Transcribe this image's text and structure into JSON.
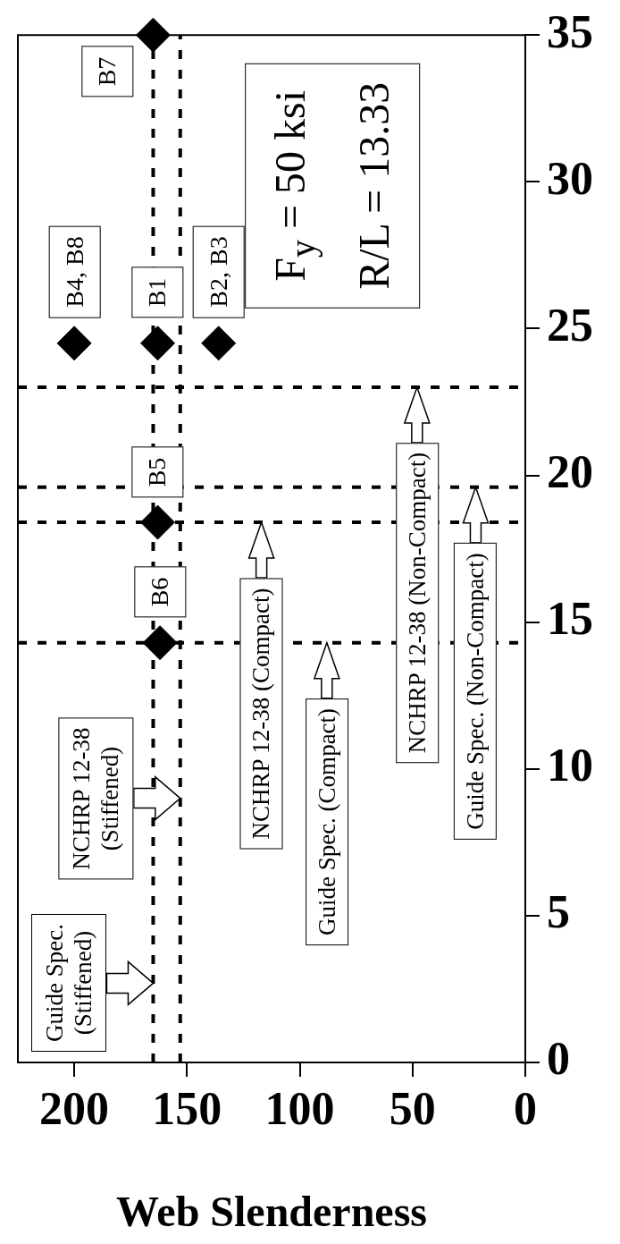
{
  "chart_data": {
    "type": "scatter",
    "xlabel": "Web Slenderness",
    "xlim": [
      225,
      0
    ],
    "xticks": [
      200,
      150,
      100,
      50,
      0
    ],
    "ylim": [
      0,
      35
    ],
    "yticks": [
      0,
      5,
      10,
      15,
      20,
      25,
      30,
      35
    ],
    "grid": false,
    "legend": false,
    "marker": "diamond",
    "series": [
      {
        "color": "#000000",
        "x": [
          165,
          200,
          163,
          136,
          163,
          162
        ],
        "values": [
          35,
          24.5,
          24.5,
          24.5,
          18.4,
          14.3
        ],
        "value_labels": [
          "B7",
          "B4, B8",
          "B1",
          "B2, B3",
          "B5",
          "B6"
        ]
      }
    ],
    "ref_lines": [
      {
        "axis": "x",
        "value": 165,
        "color": "#000000",
        "line_style": "dashed"
      },
      {
        "axis": "x",
        "value": 153,
        "color": "#000000",
        "line_style": "dashed"
      },
      {
        "axis": "y",
        "value": 14.3,
        "color": "#000000",
        "line_style": "dashed"
      },
      {
        "axis": "y",
        "value": 18.4,
        "color": "#000000",
        "line_style": "dashed"
      },
      {
        "axis": "y",
        "value": 19.6,
        "color": "#000000",
        "line_style": "dashed"
      },
      {
        "axis": "y",
        "value": 23,
        "color": "#000000",
        "line_style": "dashed"
      }
    ],
    "annotations": [
      {
        "text": "Guide Spec.\n(Stiffened)",
        "x": 165,
        "y": 2.7
      },
      {
        "text": "NCHRP 12-38\n(Stiffened)",
        "x": 153,
        "y": 9
      },
      {
        "text": "NCHRP 12-38 (Compact)",
        "x": 117,
        "y": 18.4
      },
      {
        "text": "Guide Spec. (Compact)",
        "x": 88,
        "y": 14.3
      },
      {
        "text": "NCHRP 12-38 (Non-Compact)",
        "x": 48,
        "y": 23
      },
      {
        "text": "Guide Spec. (Non-Compact)",
        "x": 22,
        "y": 19.6
      },
      "F$_{y}$ = 50 ksi",
      "R/L = 13.33"
    ]
  }
}
